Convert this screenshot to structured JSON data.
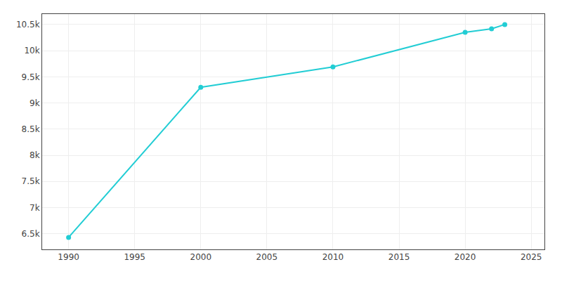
{
  "chart_data": {
    "type": "line",
    "x": [
      1990,
      2000,
      2010,
      2020,
      2022,
      2023
    ],
    "values": [
      6430,
      9300,
      9689,
      10350,
      10419,
      10500
    ],
    "color": "#22CDD4",
    "marker": "circle",
    "xlim": [
      1988,
      2026
    ],
    "ylim": [
      6200,
      10700
    ],
    "xticks": [
      1990,
      1995,
      2000,
      2005,
      2010,
      2015,
      2020,
      2025
    ],
    "yticks": [
      {
        "value": 6500,
        "label": "6.5k"
      },
      {
        "value": 7000,
        "label": "7k"
      },
      {
        "value": 7500,
        "label": "7.5k"
      },
      {
        "value": 8000,
        "label": "8k"
      },
      {
        "value": 8500,
        "label": "8.5k"
      },
      {
        "value": 9000,
        "label": "9k"
      },
      {
        "value": 9500,
        "label": "9.5k"
      },
      {
        "value": 10000,
        "label": "10k"
      },
      {
        "value": 10500,
        "label": "10.5k"
      }
    ],
    "grid": true
  }
}
